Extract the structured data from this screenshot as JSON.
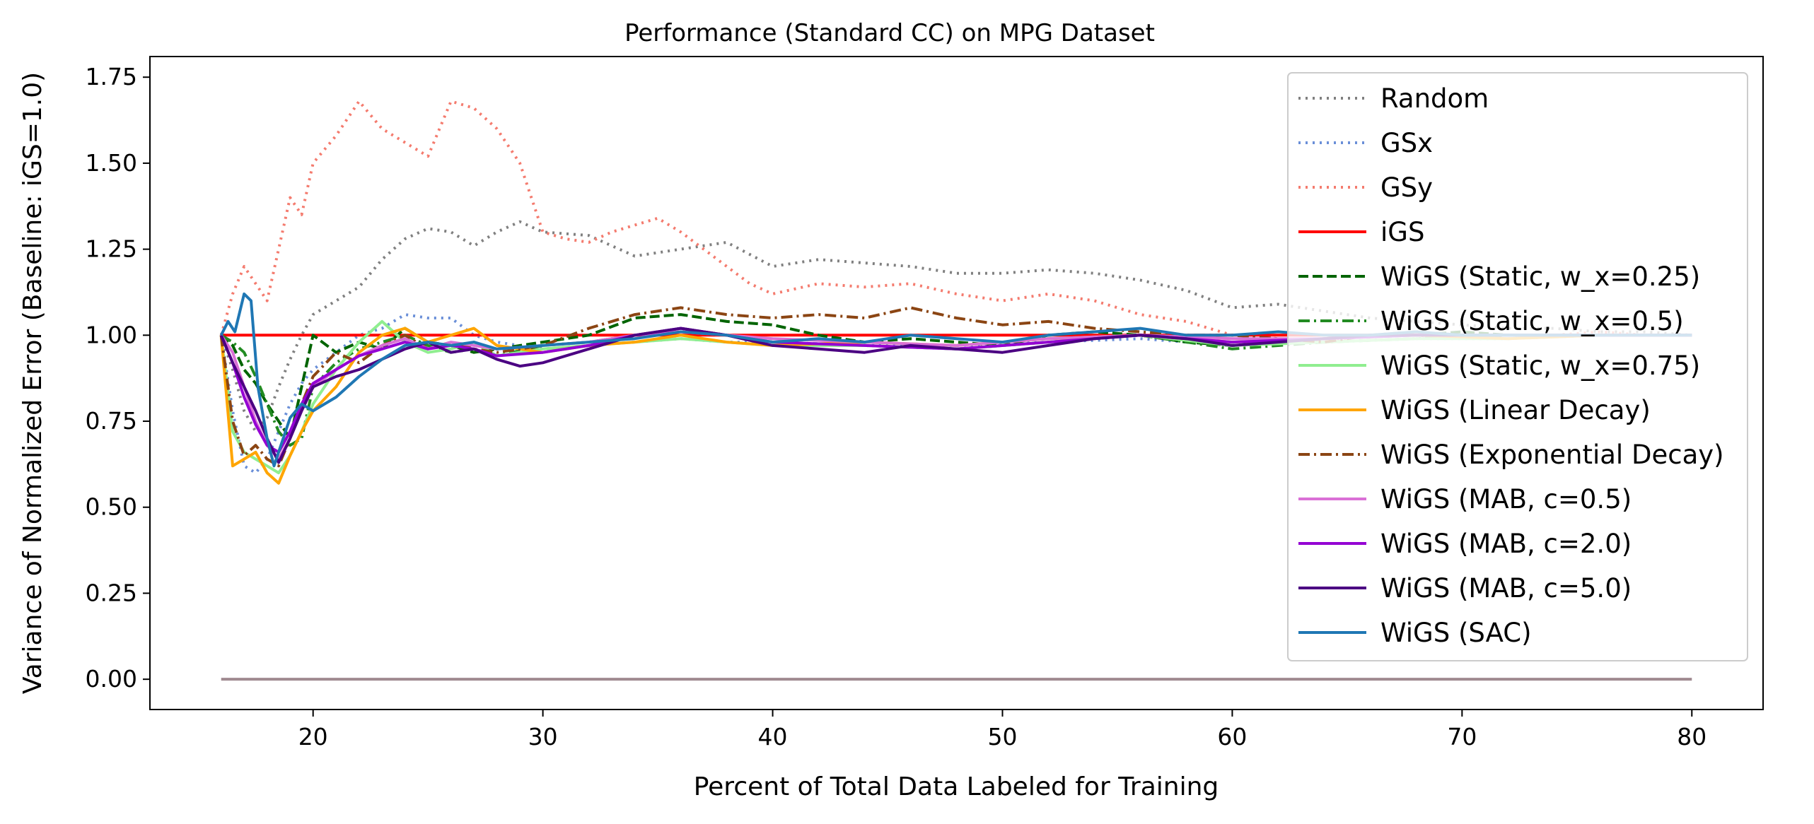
{
  "chart_data": {
    "type": "line",
    "title": "Performance (Standard CC) on MPG Dataset",
    "xlabel": "Percent of Total Data Labeled for Training",
    "ylabel": "Variance of Normalized Error (Baseline: iGS=1.0)",
    "xlim": [
      12.9,
      83.1
    ],
    "ylim": [
      -0.088,
      1.81
    ],
    "xticks": [
      20,
      30,
      40,
      50,
      60,
      70,
      80
    ],
    "xtick_labels": [
      "20",
      "30",
      "40",
      "50",
      "60",
      "70",
      "80"
    ],
    "yticks": [
      0,
      0.25,
      0.5,
      0.75,
      1.0,
      1.25,
      1.5,
      1.75
    ],
    "ytick_labels": [
      "0.00",
      "0.25",
      "0.50",
      "0.75",
      "1.00",
      "1.25",
      "1.50",
      "1.75"
    ],
    "legend_position": "upper-right",
    "grid": false,
    "series": [
      {
        "name": "Random",
        "color": "#808080",
        "dash": "dotted",
        "x": [
          16,
          16.5,
          17,
          17.5,
          18,
          18.5,
          19,
          19.5,
          20,
          21,
          22,
          23,
          24,
          25,
          26,
          27,
          28,
          29,
          30,
          32,
          34,
          36,
          38,
          40,
          42,
          44,
          46,
          48,
          50,
          52,
          54,
          56,
          58,
          60,
          62,
          64,
          66,
          68,
          70,
          72,
          74,
          76,
          78,
          80
        ],
        "y": [
          1.0,
          0.9,
          0.78,
          0.72,
          0.76,
          0.85,
          0.93,
          1.0,
          1.06,
          1.1,
          1.14,
          1.22,
          1.28,
          1.31,
          1.3,
          1.26,
          1.3,
          1.33,
          1.3,
          1.29,
          1.23,
          1.25,
          1.27,
          1.2,
          1.22,
          1.21,
          1.2,
          1.18,
          1.18,
          1.19,
          1.18,
          1.16,
          1.13,
          1.08,
          1.09,
          1.07,
          1.05,
          1.04,
          1.03,
          1.02,
          1.02,
          1.01,
          1.01,
          1.0
        ]
      },
      {
        "name": "GSx",
        "color": "#6A8FD8",
        "dash": "dotted",
        "x": [
          16,
          16.5,
          17,
          17.5,
          18,
          18.5,
          19,
          19.5,
          20,
          21,
          22,
          23,
          24,
          25,
          26,
          27,
          28,
          30,
          32,
          34,
          36,
          38,
          40,
          44,
          48,
          52,
          56,
          60,
          64,
          68,
          72,
          76,
          80
        ],
        "y": [
          1.0,
          0.78,
          0.62,
          0.6,
          0.64,
          0.72,
          0.8,
          0.86,
          0.9,
          0.95,
          1.0,
          1.02,
          1.06,
          1.05,
          1.05,
          1.0,
          0.98,
          0.96,
          0.97,
          0.98,
          0.99,
          0.98,
          0.98,
          0.97,
          0.97,
          0.98,
          0.99,
          0.97,
          0.98,
          0.99,
          0.99,
          1.0,
          1.0
        ]
      },
      {
        "name": "GSy",
        "color": "#F47B6E",
        "dash": "dotted",
        "x": [
          16,
          16.5,
          17,
          17.5,
          18,
          18.5,
          19,
          19.5,
          20,
          21,
          22,
          23,
          24,
          25,
          26,
          27,
          28,
          29,
          30,
          31,
          32,
          33,
          34,
          35,
          36,
          37,
          38,
          39,
          40,
          42,
          44,
          46,
          48,
          50,
          52,
          54,
          56,
          58,
          60,
          62,
          64,
          66,
          68,
          70,
          72,
          74,
          76,
          78,
          80
        ],
        "y": [
          1.0,
          1.12,
          1.2,
          1.15,
          1.1,
          1.25,
          1.4,
          1.35,
          1.5,
          1.58,
          1.68,
          1.6,
          1.56,
          1.52,
          1.68,
          1.66,
          1.6,
          1.5,
          1.3,
          1.28,
          1.27,
          1.3,
          1.32,
          1.34,
          1.3,
          1.25,
          1.2,
          1.15,
          1.12,
          1.15,
          1.14,
          1.15,
          1.12,
          1.1,
          1.12,
          1.1,
          1.06,
          1.04,
          1.0,
          0.99,
          0.98,
          1.0,
          1.0,
          0.99,
          1.0,
          1.0,
          1.01,
          1.0,
          1.0
        ]
      },
      {
        "name": "iGS",
        "color": "#FF0000",
        "dash": "solid",
        "x": [
          16,
          80
        ],
        "y": [
          1.0,
          1.0
        ]
      },
      {
        "name": "WiGS (Static, w_x=0.25)",
        "color": "#006400",
        "dash": "dashed",
        "x": [
          16,
          16.5,
          17,
          17.5,
          18,
          18.5,
          19,
          19.5,
          20,
          21,
          22,
          23,
          24,
          25,
          26,
          27,
          28,
          30,
          32,
          34,
          36,
          38,
          40,
          42,
          44,
          46,
          48,
          50,
          52,
          54,
          56,
          58,
          60,
          62,
          64,
          66,
          68,
          70,
          72,
          74,
          76,
          78,
          80
        ],
        "y": [
          1.0,
          0.97,
          0.9,
          0.86,
          0.8,
          0.75,
          0.7,
          0.85,
          1.0,
          0.95,
          0.98,
          0.96,
          1.02,
          0.98,
          0.97,
          0.95,
          0.96,
          0.98,
          1.0,
          1.05,
          1.06,
          1.04,
          1.03,
          1.0,
          0.98,
          0.99,
          0.98,
          0.97,
          1.0,
          1.01,
          1.0,
          0.98,
          0.97,
          0.98,
          0.99,
          1.0,
          1.0,
          1.01,
          1.0,
          1.0,
          1.0,
          1.0,
          1.0
        ]
      },
      {
        "name": "WiGS (Static, w_x=0.5)",
        "color": "#228B22",
        "dash": "dashdot",
        "x": [
          16,
          16.5,
          17,
          17.5,
          18,
          18.5,
          19,
          19.5,
          20,
          21,
          22,
          23,
          24,
          25,
          26,
          27,
          28,
          30,
          32,
          34,
          36,
          38,
          40,
          44,
          48,
          52,
          56,
          60,
          64,
          68,
          72,
          76,
          80
        ],
        "y": [
          1.0,
          0.98,
          0.95,
          0.88,
          0.8,
          0.72,
          0.68,
          0.7,
          0.85,
          0.92,
          0.96,
          0.98,
          1.0,
          0.97,
          0.95,
          0.96,
          0.94,
          0.97,
          0.98,
          1.0,
          1.02,
          1.0,
          0.98,
          0.97,
          0.96,
          0.98,
          1.0,
          0.96,
          0.98,
          0.99,
          1.0,
          1.0,
          1.0
        ]
      },
      {
        "name": "WiGS (Static, w_x=0.75)",
        "color": "#90EE90",
        "dash": "solid",
        "x": [
          16,
          16.5,
          17,
          17.5,
          18,
          18.5,
          19,
          19.5,
          20,
          21,
          22,
          23,
          24,
          25,
          26,
          27,
          28,
          30,
          32,
          34,
          36,
          38,
          40,
          44,
          48,
          52,
          56,
          60,
          64,
          68,
          72,
          76,
          80
        ],
        "y": [
          1.0,
          0.72,
          0.66,
          0.64,
          0.62,
          0.6,
          0.65,
          0.72,
          0.8,
          0.9,
          0.98,
          1.04,
          0.98,
          0.95,
          0.96,
          0.98,
          0.94,
          0.96,
          0.97,
          0.98,
          0.99,
          0.98,
          0.97,
          0.97,
          0.96,
          0.98,
          1.0,
          0.97,
          0.98,
          0.99,
          0.99,
          1.0,
          1.0
        ]
      },
      {
        "name": "WiGS (Linear Decay)",
        "color": "#FFA500",
        "dash": "solid",
        "x": [
          16,
          16.5,
          17,
          17.5,
          18,
          18.5,
          19,
          19.5,
          20,
          21,
          22,
          23,
          24,
          25,
          26,
          27,
          28,
          30,
          32,
          34,
          36,
          38,
          40,
          44,
          48,
          52,
          56,
          60,
          64,
          68,
          72,
          76,
          80
        ],
        "y": [
          1.0,
          0.62,
          0.64,
          0.66,
          0.6,
          0.57,
          0.65,
          0.72,
          0.78,
          0.85,
          0.95,
          1.0,
          1.02,
          0.98,
          1.0,
          1.02,
          0.97,
          0.95,
          0.97,
          0.98,
          1.0,
          0.98,
          0.97,
          0.98,
          0.97,
          0.99,
          1.0,
          0.98,
          0.99,
          1.0,
          0.99,
          1.0,
          1.0
        ]
      },
      {
        "name": "WiGS (Exponential Decay)",
        "color": "#8B4513",
        "dash": "dashdot",
        "x": [
          16,
          16.5,
          17,
          17.5,
          18,
          18.5,
          19,
          19.5,
          20,
          21,
          22,
          23,
          24,
          25,
          26,
          27,
          28,
          30,
          32,
          34,
          36,
          38,
          40,
          42,
          44,
          46,
          48,
          50,
          52,
          54,
          56,
          58,
          60,
          62,
          64,
          66,
          68,
          70,
          72,
          74,
          76,
          78,
          80
        ],
        "y": [
          1.0,
          0.75,
          0.65,
          0.68,
          0.64,
          0.62,
          0.7,
          0.8,
          0.88,
          0.95,
          0.92,
          0.97,
          1.0,
          0.96,
          0.98,
          0.96,
          0.95,
          0.97,
          1.02,
          1.06,
          1.08,
          1.06,
          1.05,
          1.06,
          1.05,
          1.08,
          1.05,
          1.03,
          1.04,
          1.02,
          1.01,
          1.0,
          1.0,
          0.99,
          0.98,
          1.0,
          1.01,
          1.0,
          1.0,
          1.0,
          1.0,
          1.0,
          1.0
        ]
      },
      {
        "name": "WiGS (MAB, c=0.5)",
        "color": "#DA70D6",
        "dash": "solid",
        "x": [
          16,
          16.5,
          17,
          17.5,
          18,
          18.5,
          19,
          19.5,
          20,
          21,
          22,
          23,
          24,
          25,
          26,
          27,
          28,
          30,
          32,
          34,
          36,
          38,
          40,
          44,
          48,
          52,
          56,
          60,
          64,
          68,
          72,
          76,
          80
        ],
        "y": [
          1.0,
          0.95,
          0.85,
          0.75,
          0.68,
          0.64,
          0.7,
          0.78,
          0.85,
          0.9,
          0.94,
          0.97,
          0.99,
          0.96,
          0.98,
          0.97,
          0.96,
          0.97,
          0.98,
          1.0,
          1.01,
          1.0,
          0.99,
          0.98,
          0.97,
          0.99,
          1.0,
          0.99,
          0.99,
          1.0,
          1.0,
          1.0,
          1.0
        ]
      },
      {
        "name": "WiGS (MAB, c=2.0)",
        "color": "#9400D3",
        "dash": "solid",
        "x": [
          16,
          16.5,
          17,
          17.5,
          18,
          18.5,
          19,
          19.5,
          20,
          21,
          22,
          23,
          24,
          25,
          26,
          27,
          28,
          30,
          32,
          34,
          36,
          38,
          40,
          44,
          48,
          52,
          56,
          60,
          64,
          68,
          72,
          76,
          80
        ],
        "y": [
          1.0,
          0.92,
          0.82,
          0.74,
          0.68,
          0.66,
          0.72,
          0.8,
          0.86,
          0.9,
          0.94,
          0.96,
          0.98,
          0.96,
          0.97,
          0.96,
          0.94,
          0.95,
          0.97,
          1.0,
          1.02,
          1.0,
          0.98,
          0.97,
          0.96,
          0.98,
          1.0,
          0.98,
          0.99,
          1.0,
          1.0,
          1.0,
          1.0
        ]
      },
      {
        "name": "WiGS (MAB, c=5.0)",
        "color": "#4B0082",
        "dash": "solid",
        "x": [
          16,
          16.5,
          17,
          17.5,
          18,
          18.5,
          19,
          19.5,
          20,
          21,
          22,
          23,
          24,
          25,
          26,
          27,
          28,
          29,
          30,
          32,
          34,
          36,
          38,
          40,
          42,
          44,
          46,
          48,
          50,
          52,
          54,
          56,
          58,
          60,
          62,
          64,
          66,
          68,
          70,
          72,
          74,
          76,
          78,
          80
        ],
        "y": [
          1.0,
          0.92,
          0.85,
          0.78,
          0.7,
          0.63,
          0.7,
          0.78,
          0.85,
          0.88,
          0.9,
          0.93,
          0.96,
          0.98,
          0.95,
          0.96,
          0.93,
          0.91,
          0.92,
          0.96,
          1.0,
          1.02,
          1.0,
          0.97,
          0.96,
          0.95,
          0.97,
          0.96,
          0.95,
          0.97,
          0.99,
          1.0,
          0.99,
          0.97,
          0.98,
          0.99,
          1.0,
          1.0,
          1.0,
          1.0,
          1.0,
          1.0,
          1.0,
          1.0
        ]
      },
      {
        "name": "WiGS (SAC)",
        "color": "#1F77B4",
        "dash": "solid",
        "x": [
          16,
          16.3,
          16.6,
          17,
          17.3,
          17.6,
          18,
          18.3,
          18.6,
          19,
          19.5,
          20,
          21,
          22,
          23,
          24,
          25,
          26,
          27,
          28,
          30,
          32,
          34,
          36,
          38,
          40,
          42,
          44,
          46,
          48,
          50,
          52,
          54,
          56,
          58,
          60,
          62,
          64,
          66,
          68,
          70,
          72,
          74,
          76,
          78,
          80
        ],
        "y": [
          1.0,
          1.04,
          1.01,
          1.12,
          1.1,
          0.85,
          0.7,
          0.62,
          0.68,
          0.76,
          0.8,
          0.78,
          0.82,
          0.88,
          0.93,
          0.97,
          0.98,
          0.97,
          0.98,
          0.96,
          0.97,
          0.98,
          0.99,
          1.01,
          1.0,
          0.98,
          0.99,
          0.98,
          1.0,
          0.99,
          0.98,
          1.0,
          1.01,
          1.02,
          1.0,
          1.0,
          1.01,
          1.0,
          1.0,
          1.01,
          1.0,
          1.0,
          1.0,
          1.0,
          1.0,
          1.0
        ]
      }
    ],
    "zero_line": {
      "color": "#A08A90",
      "x": [
        16,
        80
      ],
      "y": [
        0,
        0
      ]
    }
  }
}
